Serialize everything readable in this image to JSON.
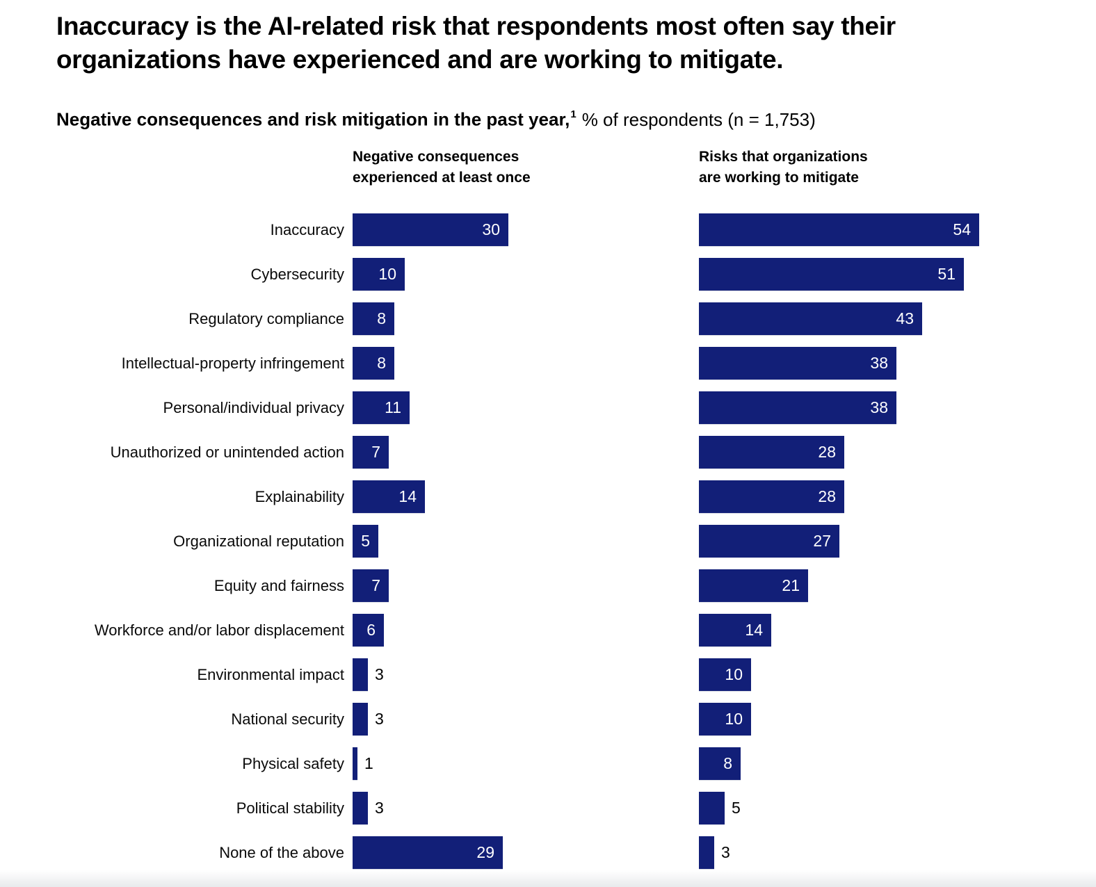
{
  "chart_data": {
    "type": "bar",
    "orientation": "horizontal",
    "title": "Inaccuracy is the AI-related risk that respondents most often say their organizations have experienced and are working to mitigate.",
    "title_lines": [
      "Inaccuracy is the AI-related risk that respondents most often say their",
      "organizations have experienced and are working to mitigate."
    ],
    "subtitle": {
      "bold": "Negative consequences and risk mitigation in the past year,",
      "footnote_marker": "1",
      "rest": "% of respondents (n = 1,753)"
    },
    "categories": [
      "Inaccuracy",
      "Cybersecurity",
      "Regulatory compliance",
      "Intellectual-property infringement",
      "Personal/individual privacy",
      "Unauthorized or unintended action",
      "Explainability",
      "Organizational reputation",
      "Equity and fairness",
      "Workforce and/or labor displacement",
      "Environmental impact",
      "National security",
      "Physical safety",
      "Political stability",
      "None of the above"
    ],
    "series": [
      {
        "key": "experienced",
        "name": "Negative consequences experienced at least once",
        "header_lines": [
          "Negative consequences",
          "experienced at least once"
        ],
        "values": [
          30,
          10,
          8,
          8,
          11,
          7,
          14,
          5,
          7,
          6,
          3,
          3,
          1,
          3,
          29
        ],
        "value_inside": [
          true,
          true,
          true,
          true,
          true,
          true,
          true,
          true,
          true,
          true,
          false,
          false,
          false,
          false,
          true
        ]
      },
      {
        "key": "mitigate",
        "name": "Risks that organizations are working to mitigate",
        "header_lines": [
          "Risks that organizations",
          "are working to mitigate"
        ],
        "values": [
          54,
          51,
          43,
          38,
          38,
          28,
          28,
          27,
          21,
          14,
          10,
          10,
          8,
          5,
          3
        ],
        "value_inside": [
          true,
          true,
          true,
          true,
          true,
          true,
          true,
          true,
          true,
          true,
          true,
          true,
          true,
          false,
          false
        ]
      }
    ],
    "xlim": [
      0,
      54
    ],
    "grid": false,
    "legend_position": "column-headers",
    "bar_color": "#121f78",
    "value_label_inside_color": "#ffffff",
    "value_label_outside_color": "#000000"
  }
}
